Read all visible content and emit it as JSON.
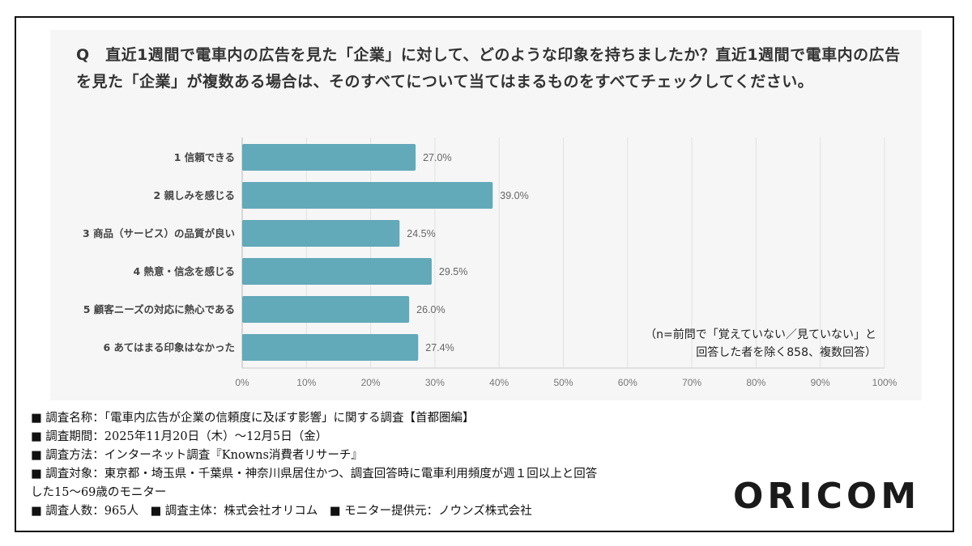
{
  "chart_data": {
    "type": "bar",
    "orientation": "horizontal",
    "title": "Q　直近1週間で電車内の広告を見た「企業」に対して、どのような印象を持ちましたか？直近1週間で電車内の広告を見た「企業」が複数ある場合は、そのすべてについて当てはまるものをすべてチェックしてください。",
    "categories": [
      "1 信頼できる",
      "2 親しみを感じる",
      "3 商品（サービス）の品質が良い",
      "4 熱意・信念を感じる",
      "5 顧客ニーズの対応に熱心である",
      "6 あてはまる印象はなかった"
    ],
    "values": [
      27.0,
      39.0,
      24.5,
      29.5,
      26.0,
      27.4
    ],
    "data_labels": [
      "27.0%",
      "39.0%",
      "24.5%",
      "29.5%",
      "26.0%",
      "27.4%"
    ],
    "xlim": [
      0,
      100
    ],
    "x_ticks": [
      "0%",
      "10%",
      "20%",
      "30%",
      "40%",
      "50%",
      "60%",
      "70%",
      "80%",
      "90%",
      "100%"
    ],
    "grid": true,
    "bar_color": "#62a9b9",
    "annotation": [
      "（n=前問で「覚えていない／見ていない」と",
      "回答した者を除く858、複数回答）"
    ]
  },
  "meta": [
    "■ 調査名称：「電車内広告が企業の信頼度に及ぼす影響」に関する調査【首都圏編】",
    "■ 調査期間：2025年11月20日（木）～12月5日（金）",
    "■ 調査方法：インターネット調査『Knowns消費者リサーチ』",
    "■ 調査対象：東京都・埼玉県・千葉県・神奈川県居住かつ、調査回答時に電車利用頻度が週１回以上と回答",
    "した15～69歳のモニター",
    "■ 調査人数：965人　■ 調査主体：株式会社オリコム　■ モニター提供元：ノウンズ株式会社"
  ],
  "logo": "ORICOM"
}
